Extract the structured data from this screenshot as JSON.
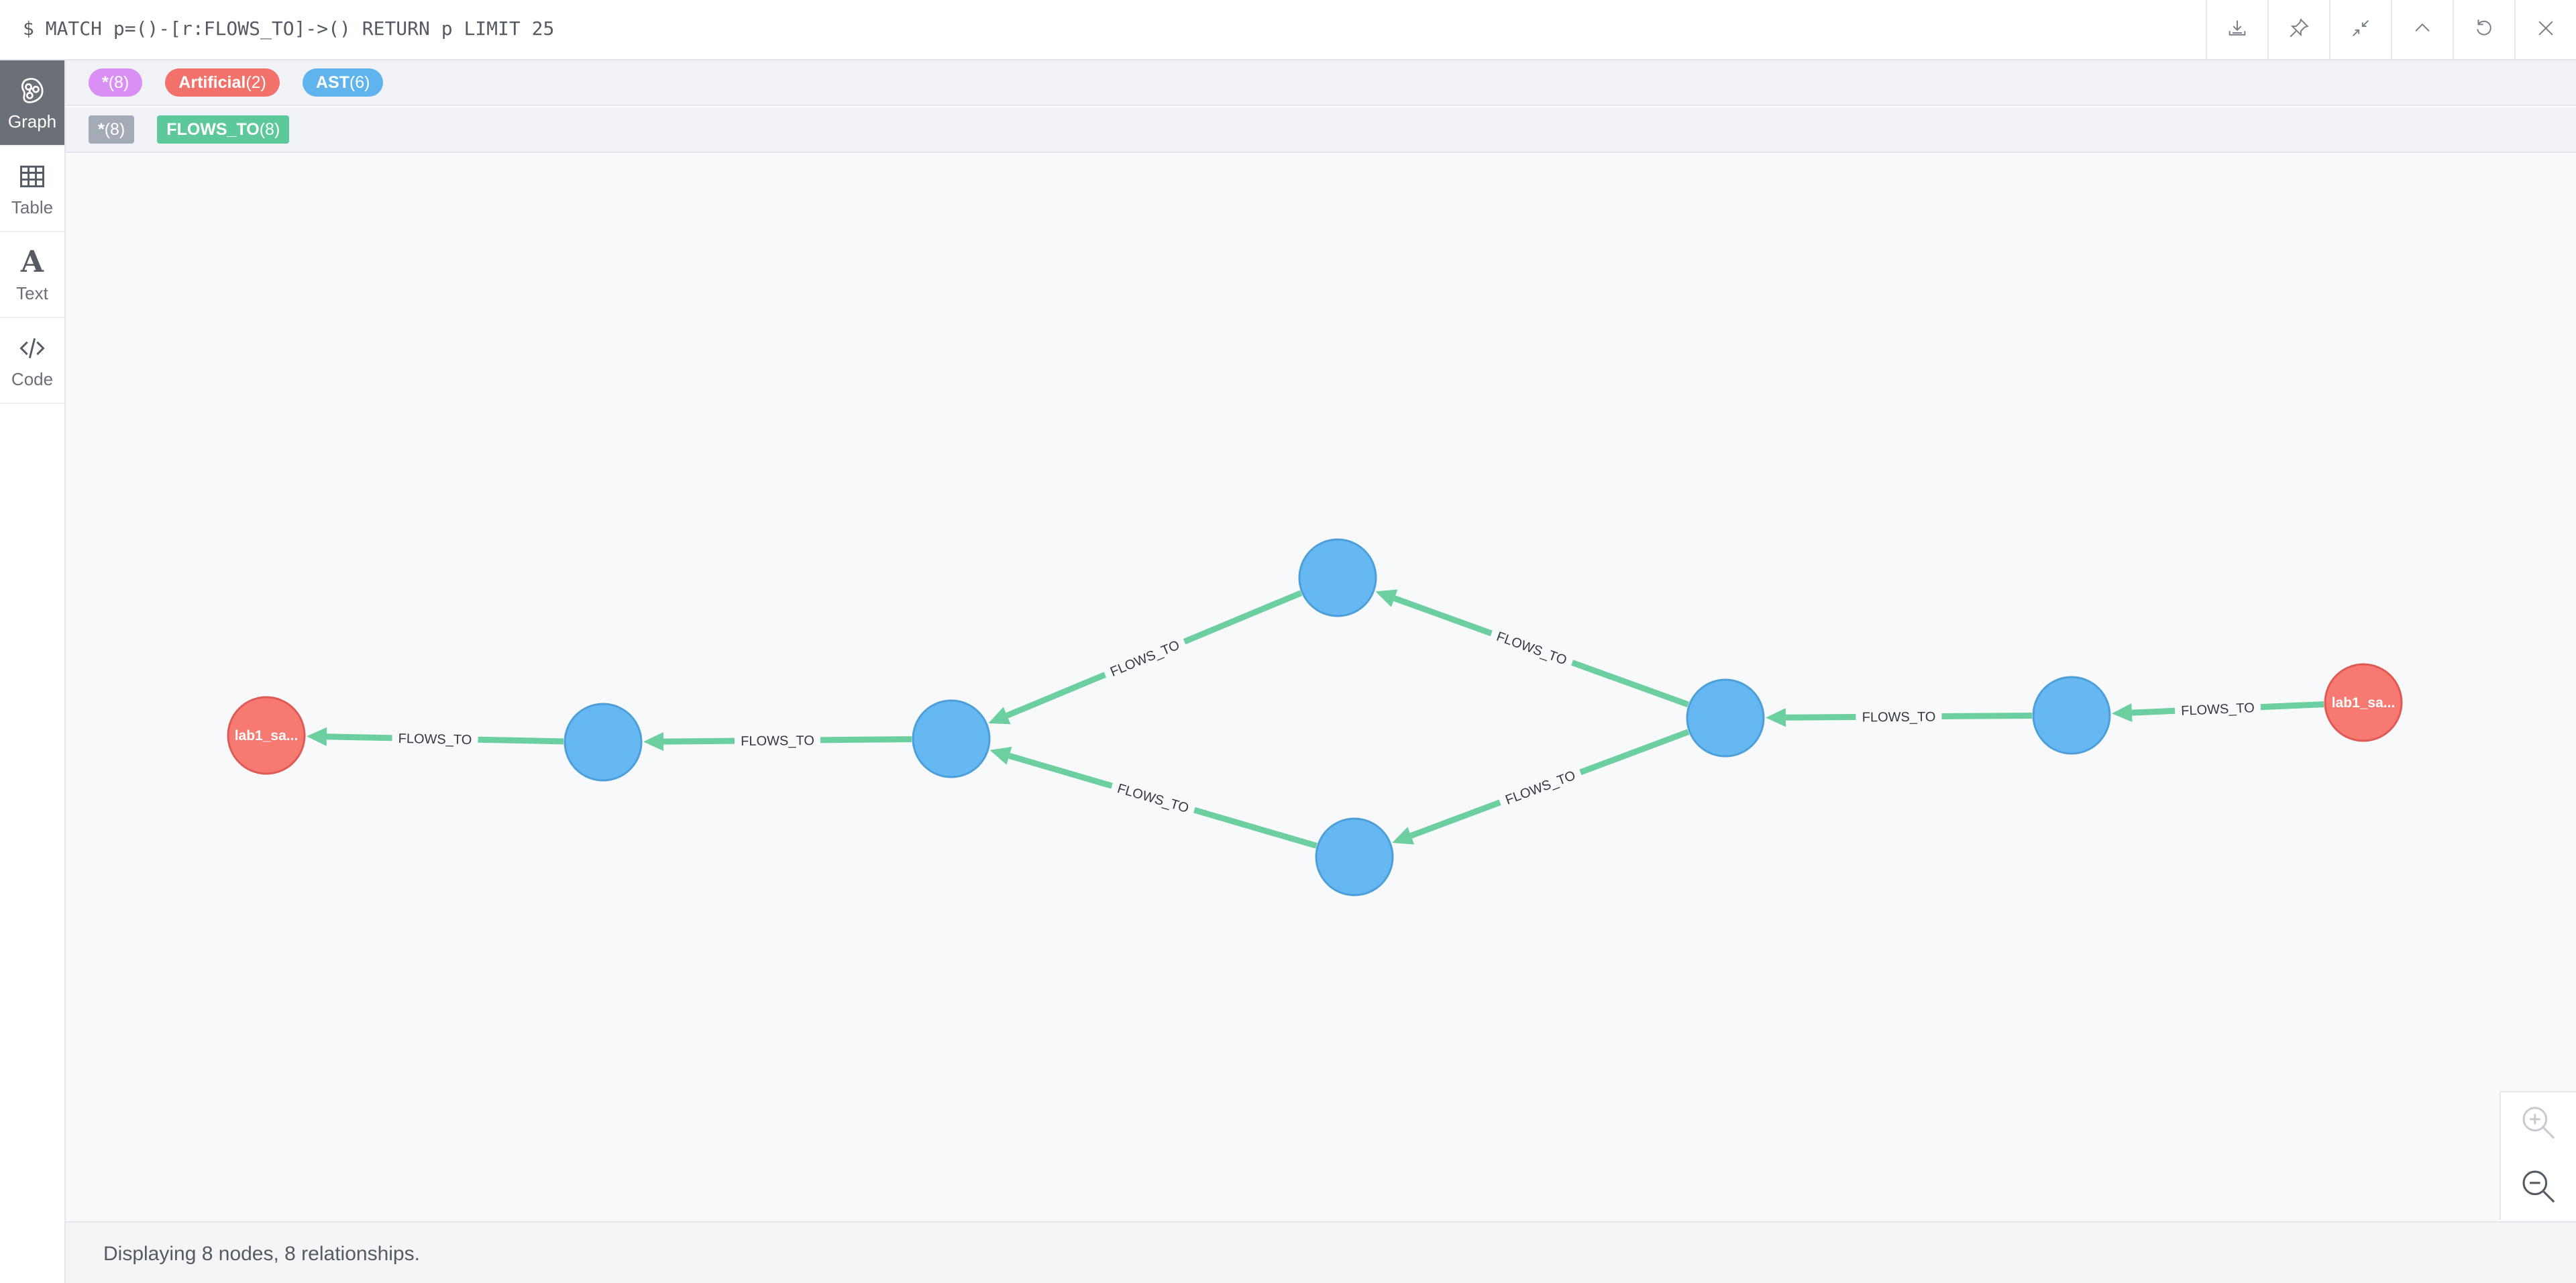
{
  "query": {
    "text": "$ MATCH p=()-[r:FLOWS_TO]->() RETURN p LIMIT 25"
  },
  "toolbar": [
    {
      "name": "download-icon"
    },
    {
      "name": "pin-icon"
    },
    {
      "name": "collapse-icon"
    },
    {
      "name": "chevron-up-icon"
    },
    {
      "name": "refresh-icon"
    },
    {
      "name": "close-icon"
    }
  ],
  "sidebar": {
    "items": [
      {
        "label": "Graph",
        "icon": "graph-icon",
        "active": true
      },
      {
        "label": "Table",
        "icon": "table-icon",
        "active": false
      },
      {
        "label": "Text",
        "icon": "text-icon",
        "active": false
      },
      {
        "label": "Code",
        "icon": "code-icon",
        "active": false
      }
    ]
  },
  "legend": {
    "node_labels": [
      {
        "name": "*",
        "count": "(8)",
        "color": "#d98ff5"
      },
      {
        "name": "Artificial",
        "count": "(2)",
        "color": "#f2716b"
      },
      {
        "name": "AST",
        "count": "(6)",
        "color": "#5fb4ee"
      }
    ],
    "relationship_types": [
      {
        "name": "*",
        "count": "(8)",
        "color": "#a5abb6"
      },
      {
        "name": "FLOWS_TO",
        "count": "(8)",
        "color": "#5dc99a"
      }
    ]
  },
  "graph": {
    "colors": {
      "artificial": "#f77a72",
      "artificial_stroke": "#e05a53",
      "ast": "#66b8f2",
      "ast_stroke": "#4c9fd8",
      "edge": "#6ccf9f"
    },
    "nodes": [
      {
        "id": "n1",
        "type": "artificial",
        "caption": "lab1_sa..."
      },
      {
        "id": "n2",
        "type": "ast",
        "caption": ""
      },
      {
        "id": "n3",
        "type": "ast",
        "caption": ""
      },
      {
        "id": "n4",
        "type": "ast",
        "caption": ""
      },
      {
        "id": "n5",
        "type": "ast",
        "caption": ""
      },
      {
        "id": "n6",
        "type": "ast",
        "caption": ""
      },
      {
        "id": "n7",
        "type": "ast",
        "caption": ""
      },
      {
        "id": "n8",
        "type": "artificial",
        "caption": "lab1_sa..."
      }
    ],
    "relationships": [
      {
        "from": "n8",
        "to": "n7",
        "type": "FLOWS_TO"
      },
      {
        "from": "n7",
        "to": "n6",
        "type": "FLOWS_TO"
      },
      {
        "from": "n6",
        "to": "n4",
        "type": "FLOWS_TO"
      },
      {
        "from": "n6",
        "to": "n5",
        "type": "FLOWS_TO"
      },
      {
        "from": "n4",
        "to": "n3",
        "type": "FLOWS_TO"
      },
      {
        "from": "n5",
        "to": "n3",
        "type": "FLOWS_TO"
      },
      {
        "from": "n3",
        "to": "n2",
        "type": "FLOWS_TO"
      },
      {
        "from": "n2",
        "to": "n1",
        "type": "FLOWS_TO"
      }
    ]
  },
  "zoom": {
    "in_icon": "zoom-in-icon",
    "out_icon": "zoom-out-icon"
  },
  "status": {
    "text": "Displaying 8 nodes, 8 relationships."
  }
}
